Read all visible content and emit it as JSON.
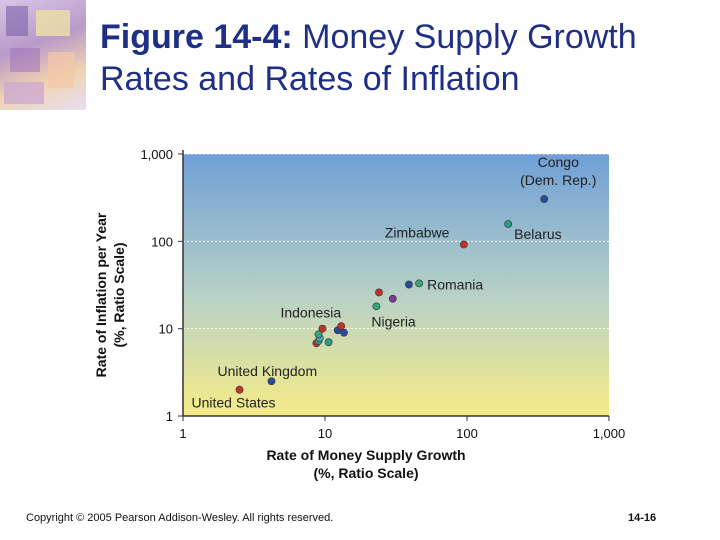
{
  "slide": {
    "title_lead": "Figure 14-4:",
    "title_rest": " Money Supply Growth Rates and Rates of Inflation",
    "copyright": "Copyright © 2005 Pearson Addison-Wesley. All rights reserved.",
    "page_number": "14-16"
  },
  "chart_data": {
    "type": "scatter",
    "xscale": "log",
    "yscale": "log",
    "xlim": [
      1,
      1000
    ],
    "ylim": [
      1,
      1000
    ],
    "x_ticks": [
      "1",
      "10",
      "100",
      "1,000"
    ],
    "y_ticks": [
      "1",
      "10",
      "100",
      "1,000"
    ],
    "xlabel": [
      "Rate of Money Supply Growth",
      "(%, Ratio Scale)"
    ],
    "ylabel": [
      "Rate of Inflation per Year",
      "(%, Ratio Scale)"
    ],
    "grid": true,
    "points": [
      {
        "x": 2.5,
        "y": 2.0,
        "color": "#c4312b",
        "label": "United States"
      },
      {
        "x": 4.2,
        "y": 2.5,
        "color": "#2a4a9c",
        "label": "United Kingdom"
      },
      {
        "x": 8.7,
        "y": 6.8,
        "color": "#c4312b",
        "label": ""
      },
      {
        "x": 9.0,
        "y": 7.2,
        "color": "#2a9a8a",
        "label": ""
      },
      {
        "x": 9.2,
        "y": 7.8,
        "color": "#4aa4b0",
        "label": ""
      },
      {
        "x": 9.0,
        "y": 8.6,
        "color": "#3aa57a",
        "label": ""
      },
      {
        "x": 9.6,
        "y": 10.0,
        "color": "#c4312b",
        "label": "Indonesia"
      },
      {
        "x": 10.6,
        "y": 7.0,
        "color": "#2a9a8a",
        "label": ""
      },
      {
        "x": 12.3,
        "y": 9.6,
        "color": "#2a4a9c",
        "label": ""
      },
      {
        "x": 13.0,
        "y": 10.7,
        "color": "#c4312b",
        "label": ""
      },
      {
        "x": 13.6,
        "y": 9.0,
        "color": "#2a4a9c",
        "label": ""
      },
      {
        "x": 23.0,
        "y": 18.0,
        "color": "#3aa57a",
        "label": "Nigeria"
      },
      {
        "x": 24.0,
        "y": 26.0,
        "color": "#c4312b",
        "label": ""
      },
      {
        "x": 30.0,
        "y": 22.0,
        "color": "#7a3a8a",
        "label": ""
      },
      {
        "x": 39.0,
        "y": 32.0,
        "color": "#2a4a9c",
        "label": ""
      },
      {
        "x": 46.0,
        "y": 33.0,
        "color": "#3aa57a",
        "label": "Romania"
      },
      {
        "x": 95.0,
        "y": 92.0,
        "color": "#c4312b",
        "label": "Zimbabwe"
      },
      {
        "x": 195.0,
        "y": 158.0,
        "color": "#2a9a8a",
        "label": "Belarus"
      },
      {
        "x": 350.0,
        "y": 305.0,
        "color": "#2a4a9c",
        "label": "Congo (Dem. Rep.)"
      }
    ]
  }
}
